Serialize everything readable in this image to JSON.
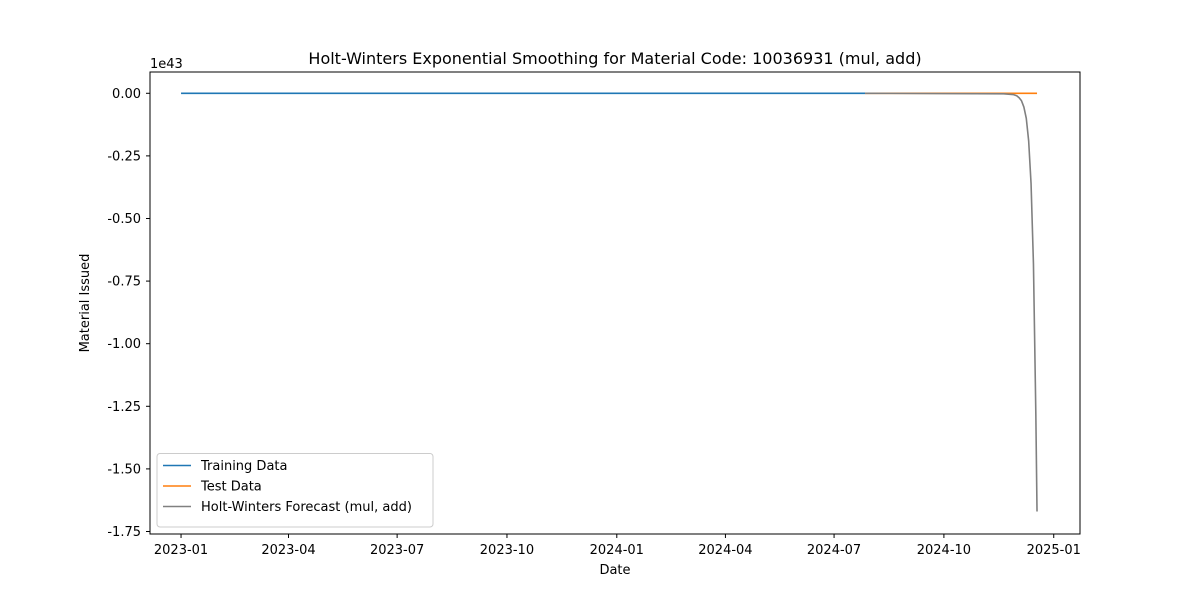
{
  "chart_data": {
    "type": "line",
    "title": "Holt-Winters Exponential Smoothing for Material Code: 10036931 (mul, add)",
    "xlabel": "Date",
    "ylabel": "Material Issued",
    "y_offset_label": "1e43",
    "y_scale": 1e+43,
    "xlim": [
      "2022-12-06",
      "2025-01-23"
    ],
    "ylim": [
      -1.76,
      0.085
    ],
    "x_ticks": [
      "2023-01",
      "2023-04",
      "2023-07",
      "2023-10",
      "2024-01",
      "2024-04",
      "2024-07",
      "2024-10",
      "2025-01"
    ],
    "y_ticks": [
      "0.00",
      "-0.25",
      "-0.50",
      "-0.75",
      "-1.00",
      "-1.25",
      "-1.50",
      "-1.75"
    ],
    "y_tick_values": [
      0,
      -0.25,
      -0.5,
      -0.75,
      -1.0,
      -1.25,
      -1.5,
      -1.75
    ],
    "grid": false,
    "legend_position": "lower-left",
    "series": [
      {
        "name": "Training Data",
        "color": "#1f77b4",
        "x": [
          "2023-01-01",
          "2024-07-27"
        ],
        "y": [
          0,
          0
        ]
      },
      {
        "name": "Test Data",
        "color": "#ff7f0e",
        "x": [
          "2024-07-27",
          "2024-12-18"
        ],
        "y": [
          0,
          0
        ]
      },
      {
        "name": "Holt-Winters Forecast (mul, add)",
        "color": "#808080",
        "x": [
          "2024-07-27",
          "2024-11-20",
          "2024-11-28",
          "2024-12-01",
          "2024-12-03",
          "2024-12-05",
          "2024-12-07",
          "2024-12-09",
          "2024-12-11",
          "2024-12-13",
          "2024-12-15",
          "2024-12-17",
          "2024-12-18"
        ],
        "y": [
          0,
          -0.002,
          -0.005,
          -0.01,
          -0.018,
          -0.03,
          -0.055,
          -0.1,
          -0.19,
          -0.36,
          -0.68,
          -1.28,
          -1.67
        ]
      }
    ]
  }
}
